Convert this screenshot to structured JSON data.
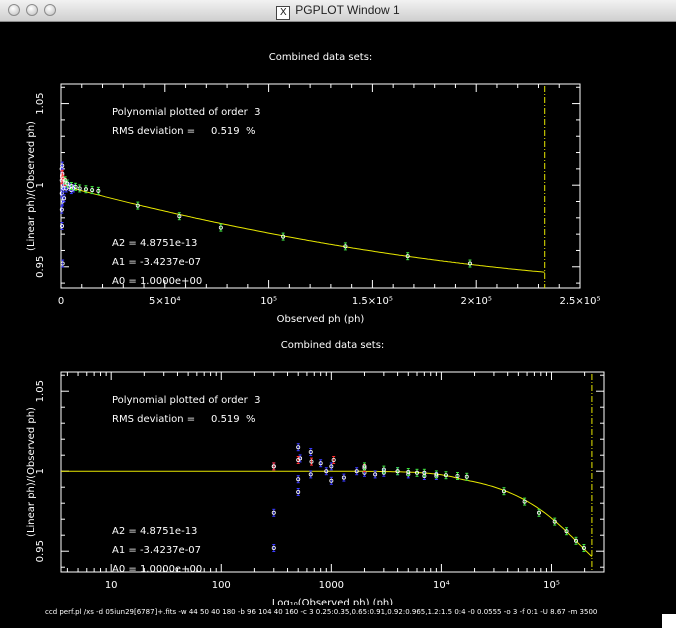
{
  "window": {
    "title": "PGPLOT Window 1"
  },
  "footer": {
    "command": "ccd perf.pl /xs -d 05iun29[6787]+.fits -w 44 50 40 180 -b 96 104 40 160 -c 3 0.25:0.35,0.65:0.91,0.92:0.965,1.2:1.5 0:4 -0 0.0555 -o 3 -f 0:1 -U 8.67 -m 3500"
  },
  "chart_data": [
    {
      "type": "scatter",
      "title": "Combined data sets:",
      "xlabel": "Observed ph (ph)",
      "ylabel": "(Linear ph)/(Observed ph)",
      "x_scale": "linear",
      "xlim": [
        0,
        250000
      ],
      "ylim": [
        0.937,
        1.062
      ],
      "x_ticks": [
        {
          "value": 0,
          "label": "0"
        },
        {
          "value": 50000,
          "label": "5×10⁴"
        },
        {
          "value": 100000,
          "label": "10⁵"
        },
        {
          "value": 150000,
          "label": "1.5×10⁵"
        },
        {
          "value": 200000,
          "label": "2×10⁵"
        },
        {
          "value": 250000,
          "label": "2.5×10⁵"
        }
      ],
      "y_ticks": [
        {
          "value": 0.95,
          "label": "0.95"
        },
        {
          "value": 1.0,
          "label": "1"
        },
        {
          "value": 1.05,
          "label": "1.05"
        }
      ],
      "annotations": [
        "Polynomial plotted of order  3",
        "RMS deviation =     0.519  %"
      ],
      "coefficients": [
        "A2 = 4.8751e-13",
        "A1 = -3.4237e-07",
        "A0 = 1.0000e+00"
      ],
      "fit": {
        "A2": 4.8751e-13,
        "A1": -3.4237e-07,
        "A0": 1.0
      },
      "limit_x": 233000,
      "series": [
        {
          "color": "#3b3bff",
          "points": [
            [
              300,
              1.01
            ],
            [
              350,
              0.995
            ],
            [
              400,
              0.985
            ],
            [
              450,
              1.005
            ],
            [
              500,
              0.975
            ],
            [
              600,
              1.012
            ],
            [
              700,
              0.99
            ],
            [
              800,
              0.952
            ],
            [
              900,
              1.003
            ],
            [
              1000,
              1.0
            ],
            [
              1200,
              0.998
            ],
            [
              1500,
              0.992
            ],
            [
              2000,
              1.0
            ],
            [
              2500,
              0.998
            ],
            [
              3000,
              1.001
            ],
            [
              4000,
              0.999
            ],
            [
              5000,
              0.997
            ],
            [
              6000,
              0.998
            ]
          ]
        },
        {
          "color": "#ff3030",
          "points": [
            [
              350,
              1.003
            ],
            [
              500,
              1.006
            ],
            [
              650,
              1.007
            ],
            [
              1000,
              1.004
            ],
            [
              2000,
              1.002
            ]
          ]
        },
        {
          "color": "#40e040",
          "points": [
            [
              2000,
              1.003
            ],
            [
              3000,
              1.001
            ],
            [
              5000,
              0.9995
            ],
            [
              7000,
              0.999
            ],
            [
              9000,
              0.998
            ],
            [
              12000,
              0.9975
            ],
            [
              15000,
              0.997
            ],
            [
              18000,
              0.9965
            ],
            [
              37000,
              0.9875
            ],
            [
              57000,
              0.981
            ],
            [
              77000,
              0.974
            ],
            [
              107000,
              0.9685
            ],
            [
              137000,
              0.9625
            ],
            [
              167000,
              0.9565
            ],
            [
              197000,
              0.952
            ]
          ]
        }
      ]
    },
    {
      "type": "scatter",
      "title": "Combined data sets:",
      "xlabel": "Log₁₀(Observed ph) (ph)",
      "ylabel": "(Linear ph)/(Observed ph)",
      "x_scale": "log",
      "xlim": [
        3.5,
        300000
      ],
      "ylim": [
        0.937,
        1.062
      ],
      "x_ticks": [
        {
          "value": 10,
          "label": "10"
        },
        {
          "value": 100,
          "label": "100"
        },
        {
          "value": 1000,
          "label": "1000"
        },
        {
          "value": 10000,
          "label": "10⁴"
        },
        {
          "value": 100000,
          "label": "10⁵"
        }
      ],
      "y_ticks": [
        {
          "value": 0.95,
          "label": "0.95"
        },
        {
          "value": 1.0,
          "label": "1"
        },
        {
          "value": 1.05,
          "label": "1.05"
        }
      ],
      "annotations": [
        "Polynomial plotted of order  3",
        "RMS deviation =     0.519  %"
      ],
      "coefficients": [
        "A2 = 4.8751e-13",
        "A1 = -3.4237e-07",
        "A0 = 1.0000e+00"
      ],
      "fit": {
        "A2": 4.8751e-13,
        "A1": -3.4237e-07,
        "A0": 1.0
      },
      "limit_x": 233000,
      "flat_until": 15000,
      "series": [
        {
          "color": "#3b3bff",
          "points": [
            [
              300,
              0.952
            ],
            [
              300,
              0.974
            ],
            [
              300,
              1.003
            ],
            [
              500,
              0.987
            ],
            [
              500,
              0.995
            ],
            [
              500,
              1.015
            ],
            [
              520,
              1.008
            ],
            [
              650,
              0.998
            ],
            [
              650,
              1.012
            ],
            [
              800,
              1.005
            ],
            [
              900,
              1.0
            ],
            [
              1000,
              0.994
            ],
            [
              1000,
              1.003
            ],
            [
              1300,
              0.996
            ],
            [
              1700,
              1.0
            ],
            [
              2000,
              0.999
            ],
            [
              2500,
              0.998
            ],
            [
              3000,
              0.999
            ],
            [
              4000,
              1.0
            ],
            [
              5000,
              0.998
            ],
            [
              7000,
              0.997
            ],
            [
              9000,
              0.997
            ]
          ]
        },
        {
          "color": "#ff3030",
          "points": [
            [
              300,
              1.003
            ],
            [
              500,
              1.007
            ],
            [
              660,
              1.006
            ],
            [
              1050,
              1.007
            ],
            [
              2000,
              1.002
            ]
          ]
        },
        {
          "color": "#40e040",
          "points": [
            [
              2000,
              1.003
            ],
            [
              3000,
              1.001
            ],
            [
              4000,
              1.0
            ],
            [
              5000,
              0.9995
            ],
            [
              6000,
              0.999
            ],
            [
              7000,
              0.999
            ],
            [
              9000,
              0.998
            ],
            [
              11000,
              0.9975
            ],
            [
              14000,
              0.997
            ],
            [
              17000,
              0.9965
            ],
            [
              37000,
              0.9875
            ],
            [
              57000,
              0.981
            ],
            [
              77000,
              0.974
            ],
            [
              107000,
              0.9685
            ],
            [
              137000,
              0.9625
            ],
            [
              167000,
              0.9565
            ],
            [
              197000,
              0.952
            ]
          ]
        }
      ]
    }
  ]
}
